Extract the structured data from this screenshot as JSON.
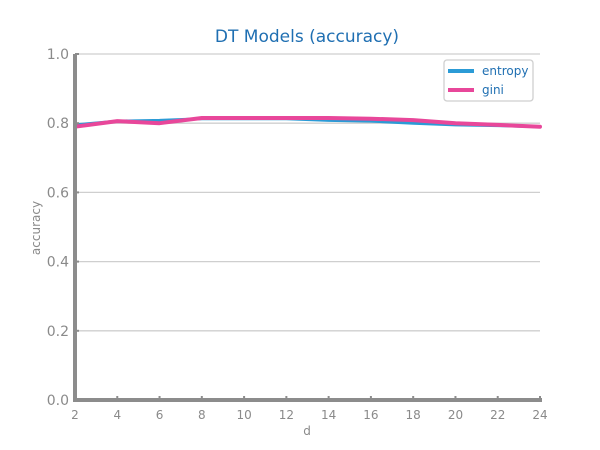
{
  "chart_data": {
    "type": "line",
    "title": "DT Models (accuracy)",
    "xlabel": "d",
    "ylabel": "accuracy",
    "x": [
      2,
      4,
      6,
      8,
      10,
      12,
      14,
      16,
      18,
      20,
      22,
      24
    ],
    "xticks": [
      "2",
      "4",
      "6",
      "8",
      "10",
      "12",
      "14",
      "16",
      "18",
      "20",
      "22",
      "24"
    ],
    "yticks": [
      "0.0",
      "0.2",
      "0.4",
      "0.6",
      "0.8",
      "1.0"
    ],
    "xlim": [
      2,
      24
    ],
    "ylim": [
      0,
      1
    ],
    "grid": true,
    "legend_position": "top-right",
    "series": [
      {
        "name": "entropy",
        "color": "#2b9bd6",
        "values": [
          0.795,
          0.806,
          0.808,
          0.813,
          0.813,
          0.813,
          0.808,
          0.806,
          0.8,
          0.795,
          0.793,
          0.79
        ]
      },
      {
        "name": "gini",
        "color": "#e8479a",
        "values": [
          0.79,
          0.806,
          0.8,
          0.815,
          0.815,
          0.815,
          0.815,
          0.813,
          0.809,
          0.8,
          0.795,
          0.79
        ]
      }
    ]
  }
}
